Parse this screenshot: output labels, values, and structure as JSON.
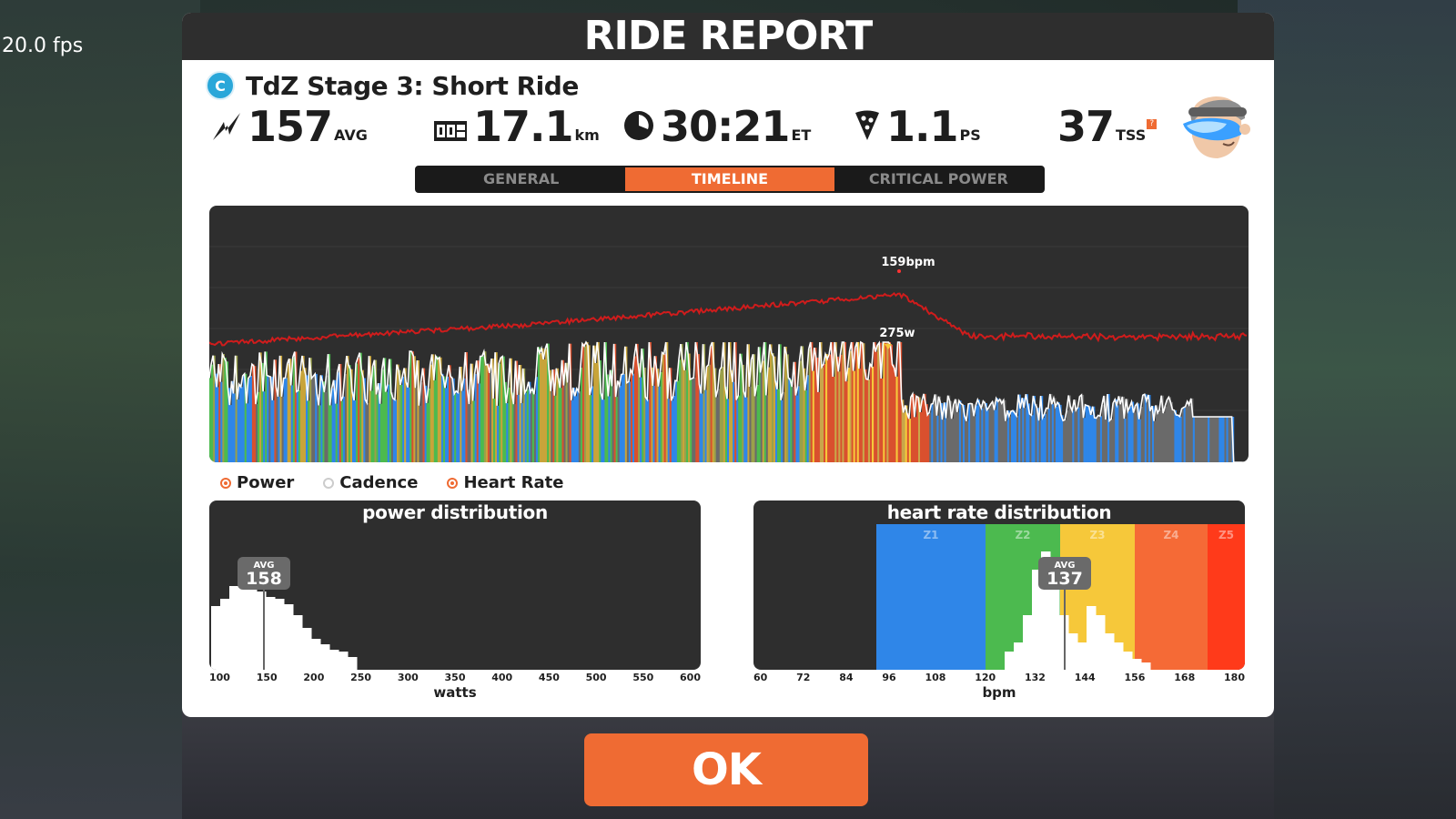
{
  "hud": {
    "fps": "20.0 fps"
  },
  "modal": {
    "title": "RIDE REPORT"
  },
  "ride": {
    "category_badge": "C",
    "name": "TdZ Stage 3: Short Ride"
  },
  "stats": {
    "power": {
      "value": "157",
      "unit": "AVG",
      "icon": "power-bolt-icon"
    },
    "distance": {
      "value": "17.1",
      "unit": "km",
      "icon": "odometer-icon"
    },
    "time": {
      "value": "30:21",
      "unit": "ET",
      "icon": "clock-icon"
    },
    "food": {
      "value": "1.1",
      "unit": "PS",
      "icon": "pizza-slice-icon"
    },
    "tss": {
      "value": "37",
      "unit": "TSS",
      "help": "?"
    }
  },
  "tabs": [
    {
      "label": "GENERAL",
      "active": false
    },
    {
      "label": "TIMELINE",
      "active": true
    },
    {
      "label": "CRITICAL POWER",
      "active": false
    }
  ],
  "timeline": {
    "max_hr_label": "159bpm",
    "max_power_label": "275w"
  },
  "legend": [
    {
      "label": "Power",
      "checked": true
    },
    {
      "label": "Cadence",
      "checked": false
    },
    {
      "label": "Heart Rate",
      "checked": true
    }
  ],
  "power_distribution": {
    "title": "power distribution",
    "avg_label": "AVG",
    "avg_value": "158",
    "ticks": [
      "100",
      "150",
      "200",
      "250",
      "300",
      "350",
      "400",
      "450",
      "500",
      "550",
      "600"
    ],
    "xlabel": "watts"
  },
  "hr_distribution": {
    "title": "heart rate distribution",
    "avg_label": "AVG",
    "avg_value": "137",
    "zones": [
      "Z1",
      "Z2",
      "Z3",
      "Z4",
      "Z5"
    ],
    "ticks": [
      "60",
      "72",
      "84",
      "96",
      "108",
      "120",
      "132",
      "144",
      "156",
      "168",
      "180"
    ],
    "xlabel": "bpm"
  },
  "colors": {
    "accent": "#ef6b33",
    "panel": "#2e2e2e",
    "hr_line": "#d01c1c",
    "zone_blue": "#2f86e8",
    "zone_green": "#4cba4f",
    "zone_yellow": "#f6c83a",
    "zone_orange": "#f56a36",
    "zone_red": "#ff3a1a",
    "gray": "#6a6a6a"
  },
  "ok_button": {
    "label": "OK"
  }
}
